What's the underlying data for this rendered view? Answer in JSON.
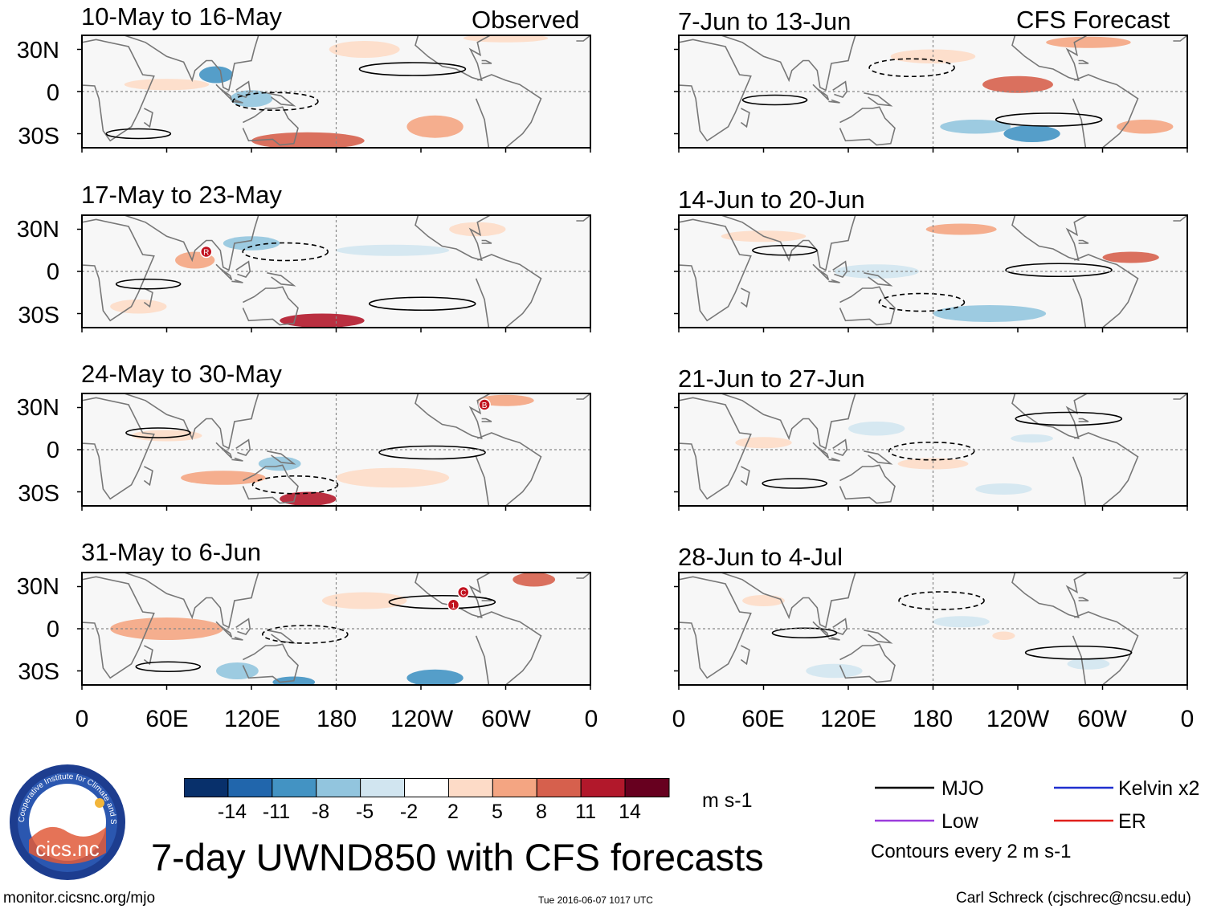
{
  "chart_data": {
    "type": "heatmap",
    "title": "7-day UWND850 with CFS forecasts",
    "variable": "850-hPa zonal wind anomaly",
    "units": "m s-1",
    "column_headers": [
      "Observed",
      "CFS Forecast"
    ],
    "lat_ticks": [
      "30N",
      "0",
      "30S"
    ],
    "lon_ticks": [
      "0",
      "60E",
      "120E",
      "180",
      "120W",
      "60W",
      "0"
    ],
    "lon_range_deg": [
      0,
      360
    ],
    "lat_range_deg": [
      -40,
      40
    ],
    "observed_periods": [
      "10-May to 16-May",
      "17-May to 23-May",
      "24-May to 30-May",
      "31-May to 6-Jun"
    ],
    "forecast_periods": [
      "7-Jun to 13-Jun",
      "14-Jun to 20-Jun",
      "21-Jun to 27-Jun",
      "28-Jun to 4-Jul"
    ],
    "colorbar": {
      "levels": [
        "-14",
        "-11",
        "-8",
        "-5",
        "-2",
        "2",
        "5",
        "8",
        "11",
        "14"
      ],
      "colors": [
        "#08306b",
        "#2166ac",
        "#4393c3",
        "#92c5de",
        "#d1e5f0",
        "#ffffff",
        "#fddbc7",
        "#f4a582",
        "#d6604d",
        "#b2182b",
        "#67001f"
      ],
      "units_label": "m s-1"
    },
    "contour_legend": [
      {
        "name": "MJO",
        "color": "#000000"
      },
      {
        "name": "Kelvin x2",
        "color": "#1f2fcf"
      },
      {
        "name": "Low",
        "color": "#9b3cdc"
      },
      {
        "name": "ER",
        "color": "#e0201c"
      }
    ],
    "contour_note": "Contours every 2 m s-1",
    "storm_markers": [
      {
        "panel": 1,
        "label": "R",
        "lon_deg": 88,
        "lat_deg": 14
      },
      {
        "panel": 2,
        "label": "B",
        "lon_deg": 285,
        "lat_deg": 32
      },
      {
        "panel": 3,
        "label": "1",
        "lon_deg": 263,
        "lat_deg": 17
      },
      {
        "panel": 3,
        "label": "C",
        "lon_deg": 270,
        "lat_deg": 26
      }
    ]
  },
  "logo": {
    "text": "cics.nc",
    "ring_text": "Cooperative Institute for Climate and Satellites"
  },
  "footer": {
    "url": "monitor.cicsnc.org/mjo",
    "timestamp": "Tue 2016-06-07 1017 UTC",
    "credit": "Carl Schreck (cjschrec@ncsu.edu)"
  }
}
